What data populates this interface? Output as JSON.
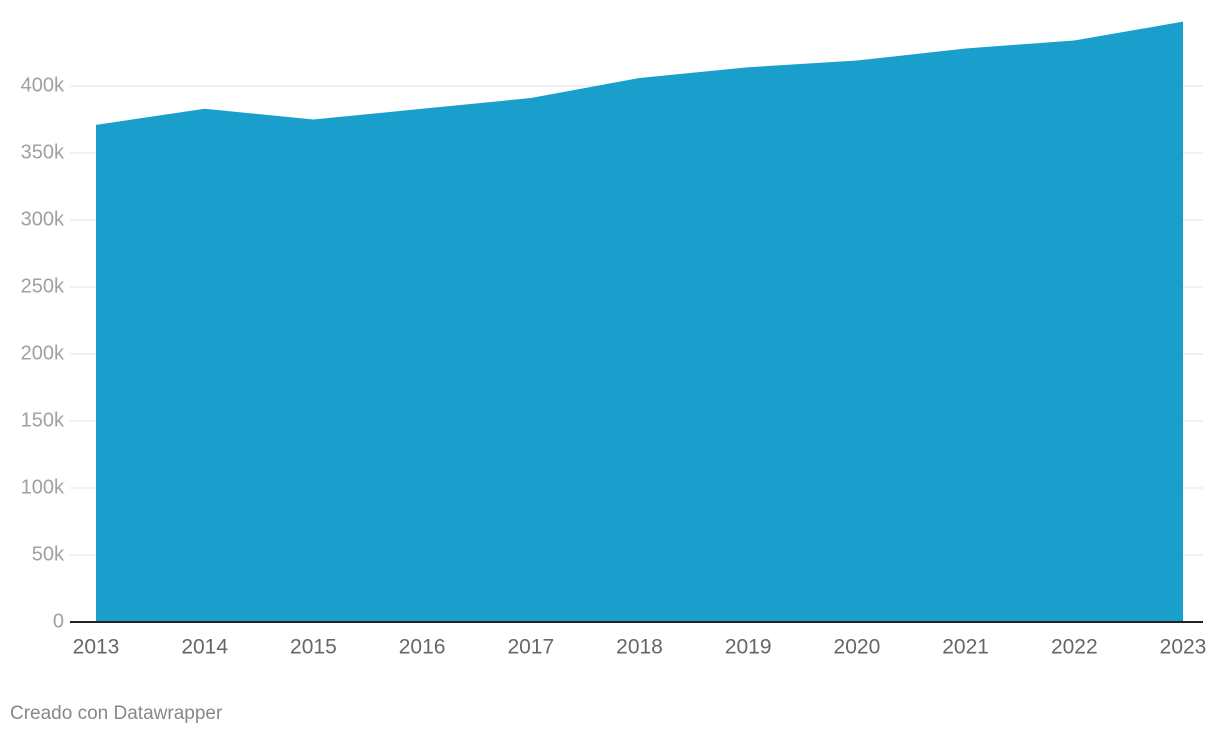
{
  "chart_data": {
    "type": "area",
    "categories": [
      "2013",
      "2014",
      "2015",
      "2016",
      "2017",
      "2018",
      "2019",
      "2020",
      "2021",
      "2022",
      "2023"
    ],
    "values": [
      371000,
      383000,
      375000,
      383000,
      391000,
      406000,
      414000,
      419000,
      428000,
      434000,
      448000
    ],
    "color": "#1a9fcc",
    "ylim": [
      0,
      450000
    ],
    "yticks": [
      0,
      {
        "value": 50000,
        "label": "50k"
      },
      {
        "value": 100000,
        "label": "100k"
      },
      {
        "value": 150000,
        "label": "150k"
      },
      {
        "value": 200000,
        "label": "200k"
      },
      {
        "value": 250000,
        "label": "250k"
      },
      {
        "value": 300000,
        "label": "300k"
      },
      {
        "value": 350000,
        "label": "350k"
      },
      {
        "value": 400000,
        "label": "400k"
      }
    ],
    "grid": true,
    "footer": "Creado con Datawrapper"
  }
}
